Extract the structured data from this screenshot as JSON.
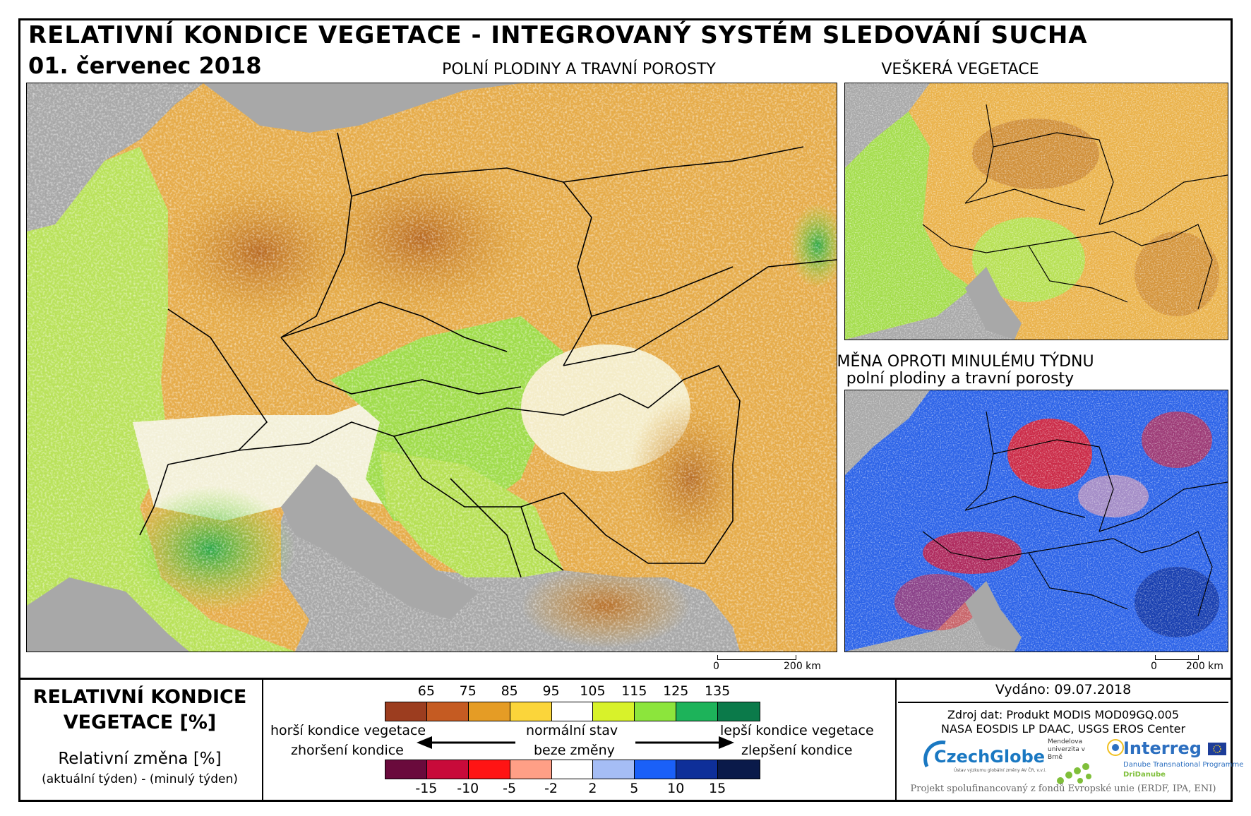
{
  "header": {
    "title": "RELATIVNÍ KONDICE VEGETACE - INTEGROVANÝ SYSTÉM SLEDOVÁNÍ SUCHA",
    "date": "01. červenec 2018"
  },
  "maps": {
    "main_label": "POLNÍ PLODINY A TRAVNÍ POROSTY",
    "all_veg_label": "VEŠKERÁ VEGETACE",
    "change_label_line1": "ZMĚNA OPROTI MINULÉMU TÝDNU",
    "change_label_line2": "polní plodiny a travní porosty"
  },
  "scalebar": {
    "zero": "0",
    "distance": "200 km"
  },
  "legend": {
    "title_line1": "RELATIVNÍ KONDICE",
    "title_line2": "VEGETACE [%]",
    "change_title": "Relativní změna [%]",
    "change_formula": "(aktuální týden) - (minulý týden)",
    "condition_ticks": [
      "65",
      "75",
      "85",
      "95",
      "105",
      "115",
      "125",
      "135"
    ],
    "condition_colors": [
      "#9c3d1f",
      "#c55b22",
      "#e59c25",
      "#fbd53a",
      "#ffffff",
      "#d8f22a",
      "#8ce53c",
      "#1db35a",
      "#0b7a4a"
    ],
    "change_ticks": [
      "-15",
      "-10",
      "-5",
      "-2",
      "2",
      "5",
      "10",
      "15"
    ],
    "change_colors": [
      "#6a0a3c",
      "#c80a3a",
      "#ff1414",
      "#ff9f86",
      "#ffffff",
      "#a5bdf5",
      "#1a60f8",
      "#0e2f99",
      "#0a1a4a"
    ],
    "worse_condition": "horší kondice vegetace",
    "normal_state": "normální stav",
    "better_condition": "lepší kondice vegetace",
    "worsening": "zhoršení kondice",
    "no_change": "beze změny",
    "improvement": "zlepšení kondice"
  },
  "info": {
    "issued": "Vydáno: 09.07.2018",
    "source_line1": "Zdroj dat: Produkt MODIS MOD09GQ.005",
    "source_line2": "NASA EOSDIS LP DAAC, USGS EROS Center",
    "logo_czechglobe": "CzechGlobe",
    "czechglobe_tagline": "Ústav výzkumu globální změny AV ČR, v.v.i.",
    "logo_mendel": "Mendelova univerzita v Brně",
    "logo_interreg": "Interreg",
    "interreg_sub1": "Danube Transnational Programme",
    "interreg_sub2": "DriDanube",
    "funding": "Projekt spolufinancovaný z fondů Evropské unie (ERDF, IPA, ENI)"
  },
  "colors": {
    "sea": "#a8a8a8",
    "frame": "#000000"
  }
}
